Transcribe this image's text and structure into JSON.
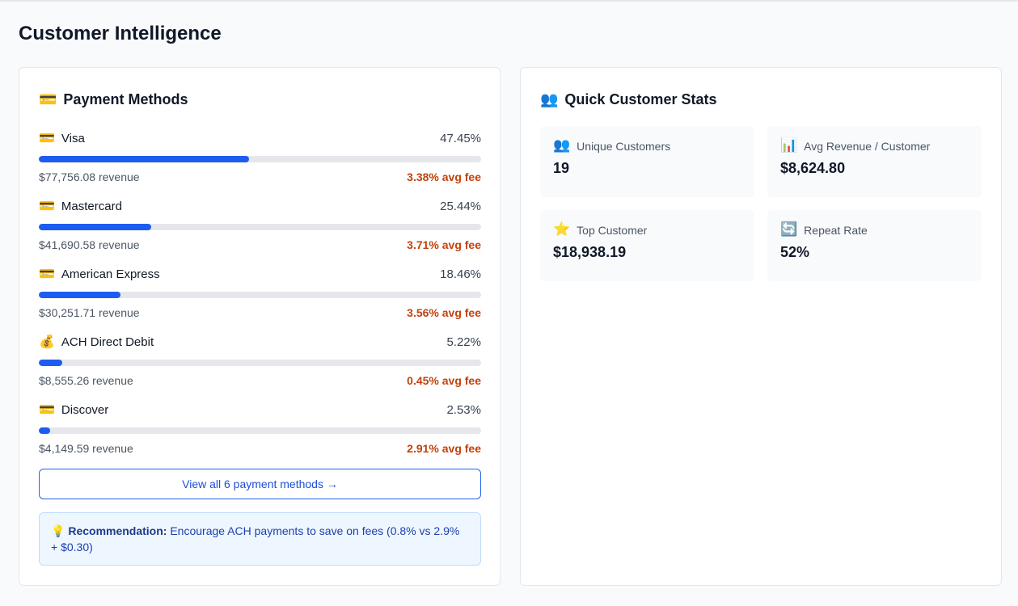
{
  "page": {
    "title": "Customer Intelligence"
  },
  "payment_methods": {
    "title": "Payment Methods",
    "icon": "💳",
    "items": [
      {
        "icon": "💳",
        "name": "Visa",
        "percent_label": "47.45%",
        "percent": 47.45,
        "revenue": "$77,756.08 revenue",
        "fee": "3.38% avg fee"
      },
      {
        "icon": "💳",
        "name": "Mastercard",
        "percent_label": "25.44%",
        "percent": 25.44,
        "revenue": "$41,690.58 revenue",
        "fee": "3.71% avg fee"
      },
      {
        "icon": "💳",
        "name": "American Express",
        "percent_label": "18.46%",
        "percent": 18.46,
        "revenue": "$30,251.71 revenue",
        "fee": "3.56% avg fee"
      },
      {
        "icon": "💰",
        "name": "ACH Direct Debit",
        "percent_label": "5.22%",
        "percent": 5.22,
        "revenue": "$8,555.26 revenue",
        "fee": "0.45% avg fee"
      },
      {
        "icon": "💳",
        "name": "Discover",
        "percent_label": "2.53%",
        "percent": 2.53,
        "revenue": "$4,149.59 revenue",
        "fee": "2.91% avg fee"
      }
    ],
    "view_all_label": "View all 6 payment methods →",
    "recommendation": {
      "icon": "💡",
      "label": "Recommendation:",
      "text": " Encourage ACH payments to save on fees (0.8% vs 2.9% + $0.30)"
    }
  },
  "quick_stats": {
    "title": "Quick Customer Stats",
    "icon": "👥",
    "stats": [
      {
        "icon": "👥",
        "label": "Unique Customers",
        "value": "19"
      },
      {
        "icon": "📊",
        "label": "Avg Revenue / Customer",
        "value": "$8,624.80"
      },
      {
        "icon": "⭐",
        "label": "Top Customer",
        "value": "$18,938.19"
      },
      {
        "icon": "🔄",
        "label": "Repeat Rate",
        "value": "52%"
      }
    ]
  },
  "colors": {
    "bar_fill": "#1d5cf0",
    "bar_track": "#e5e7eb",
    "fee_text": "#c2410c",
    "link": "#1d4ed8"
  }
}
